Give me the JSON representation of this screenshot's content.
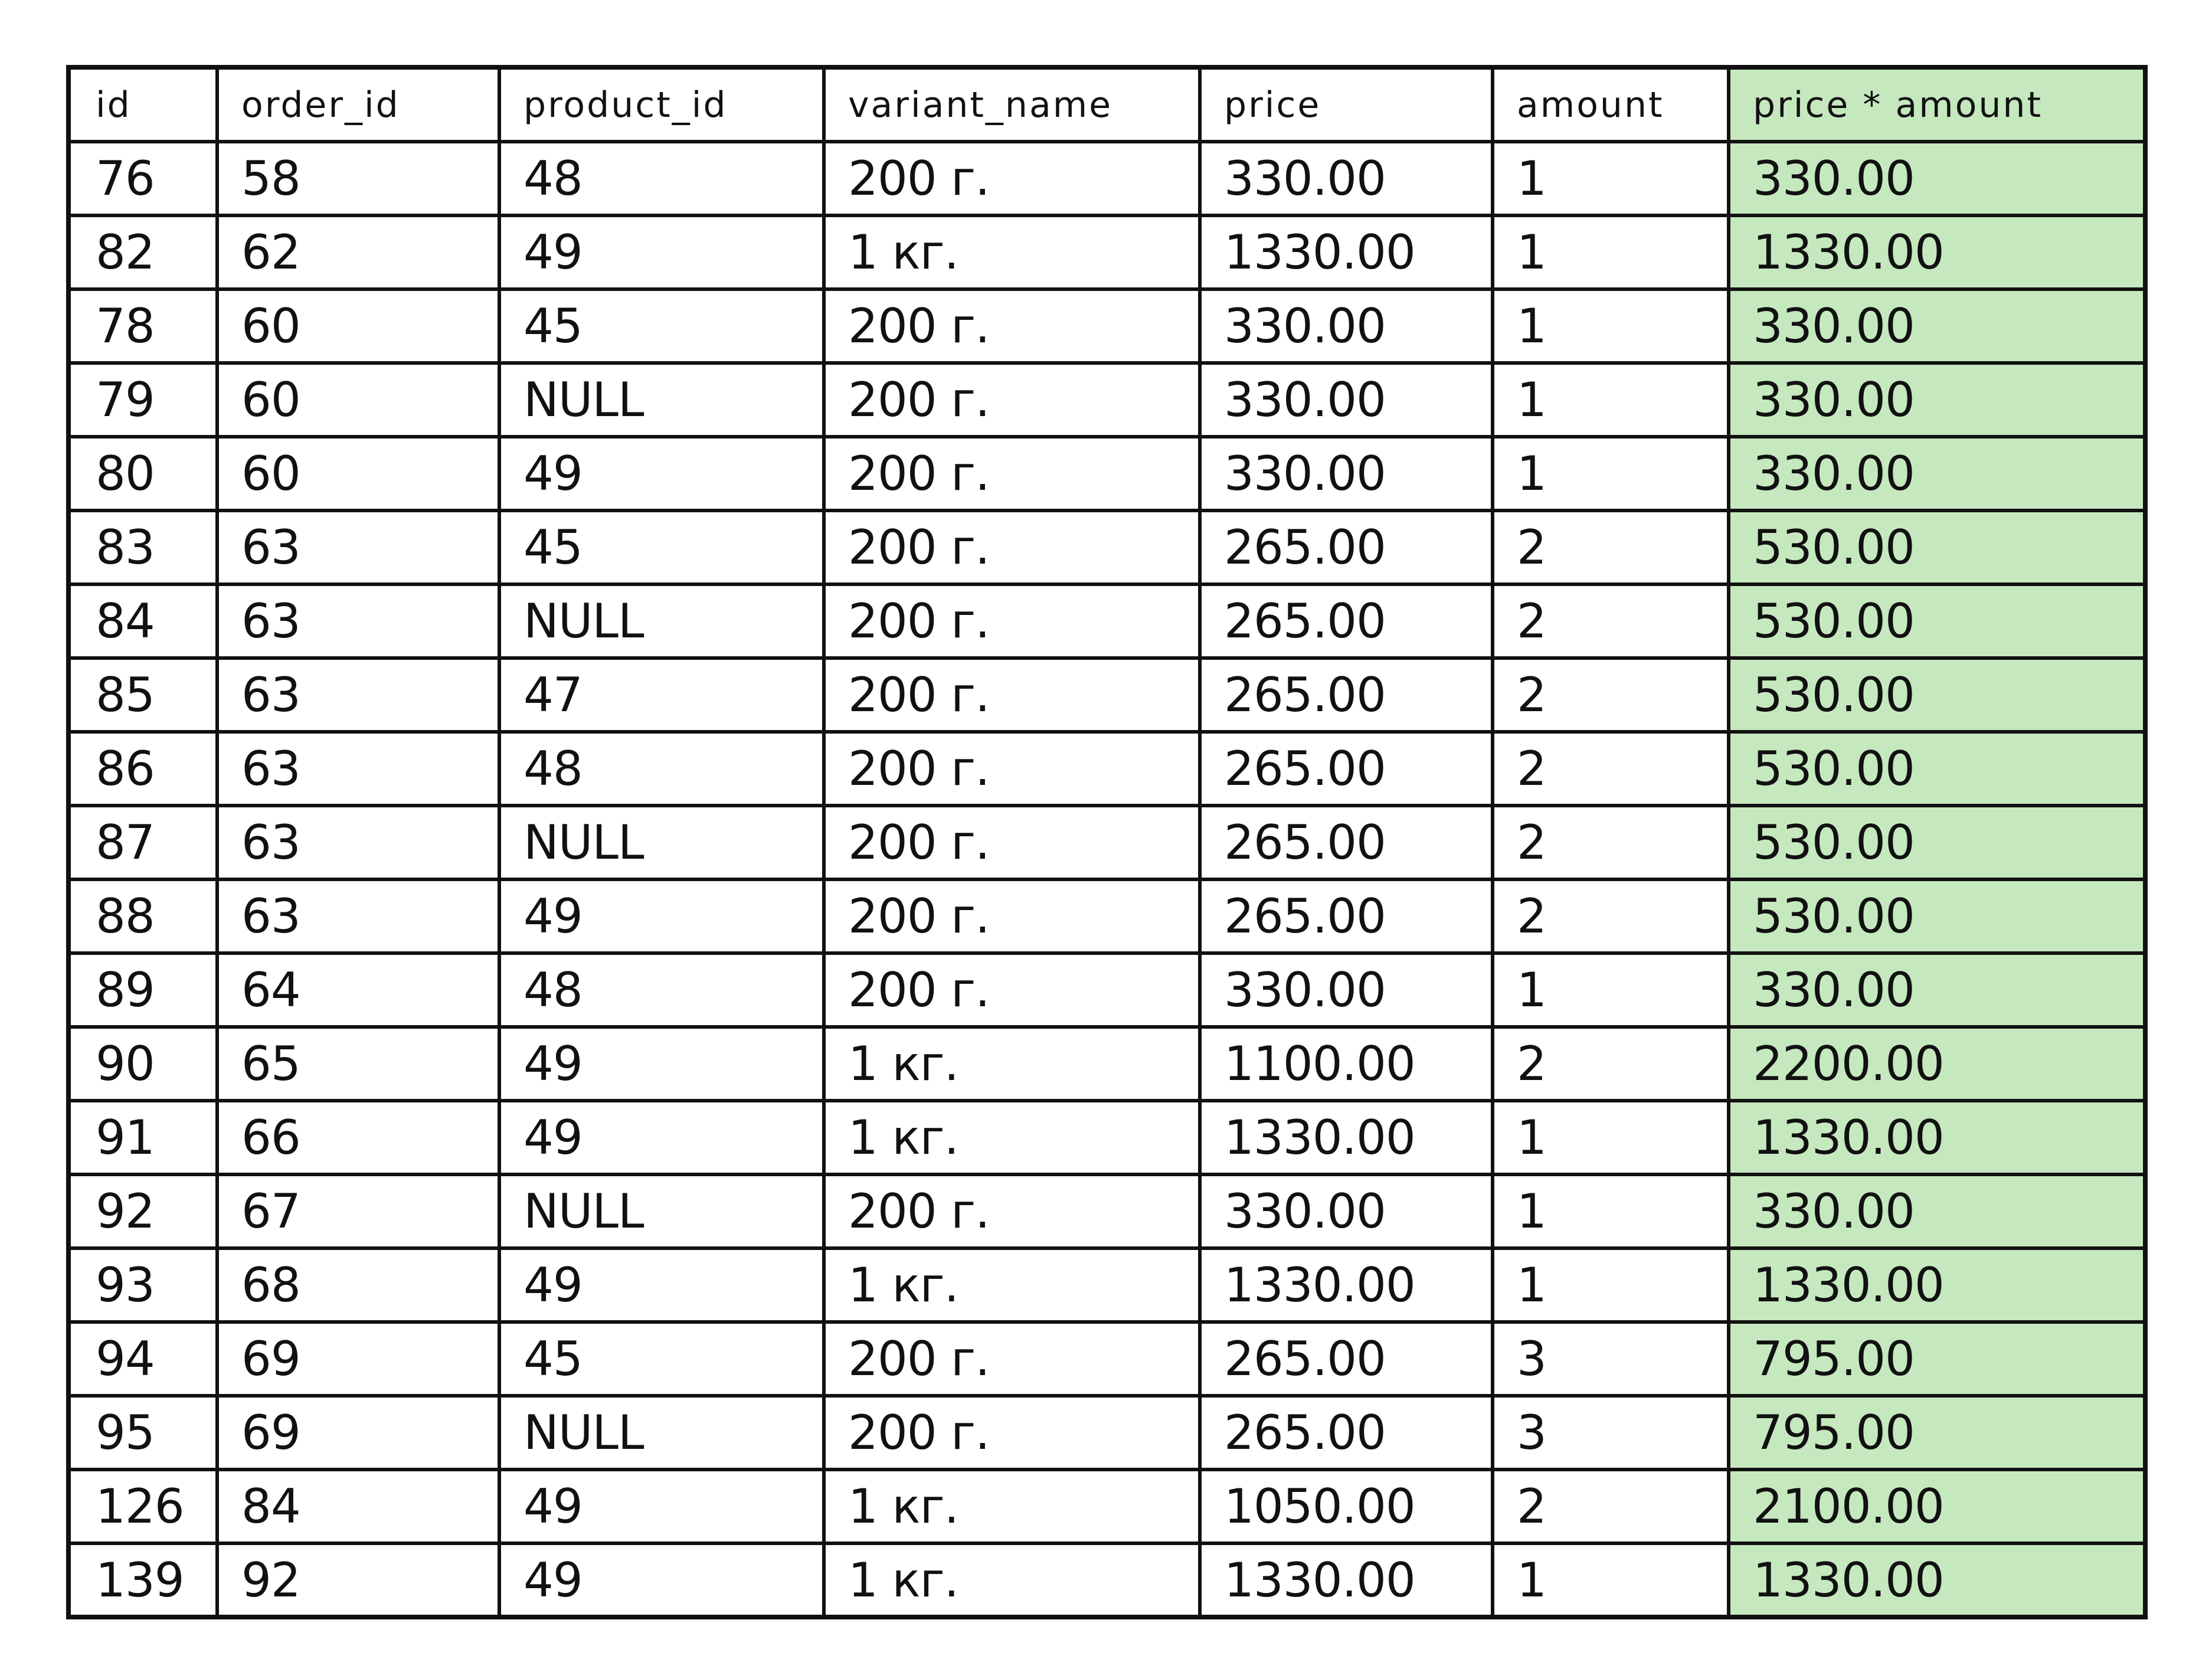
{
  "table": {
    "columns": [
      "id",
      "order_id",
      "product_id",
      "variant_name",
      "price",
      "amount",
      "price * amount"
    ],
    "highlight_column_index": 6,
    "highlight_color": "#c6e8bf",
    "border_color": "#111111",
    "rows": [
      [
        "76",
        "58",
        "48",
        "200 г.",
        "330.00",
        "1",
        "330.00"
      ],
      [
        "82",
        "62",
        "49",
        "1 кг.",
        "1330.00",
        "1",
        "1330.00"
      ],
      [
        "78",
        "60",
        "45",
        "200 г.",
        "330.00",
        "1",
        "330.00"
      ],
      [
        "79",
        "60",
        "NULL",
        "200 г.",
        "330.00",
        "1",
        "330.00"
      ],
      [
        "80",
        "60",
        "49",
        "200 г.",
        "330.00",
        "1",
        "330.00"
      ],
      [
        "83",
        "63",
        "45",
        "200 г.",
        "265.00",
        "2",
        "530.00"
      ],
      [
        "84",
        "63",
        "NULL",
        "200 г.",
        "265.00",
        "2",
        "530.00"
      ],
      [
        "85",
        "63",
        "47",
        "200 г.",
        "265.00",
        "2",
        "530.00"
      ],
      [
        "86",
        "63",
        "48",
        "200 г.",
        "265.00",
        "2",
        "530.00"
      ],
      [
        "87",
        "63",
        "NULL",
        "200 г.",
        "265.00",
        "2",
        "530.00"
      ],
      [
        "88",
        "63",
        "49",
        "200 г.",
        "265.00",
        "2",
        "530.00"
      ],
      [
        "89",
        "64",
        "48",
        "200 г.",
        "330.00",
        "1",
        "330.00"
      ],
      [
        "90",
        "65",
        "49",
        "1 кг.",
        "1100.00",
        "2",
        "2200.00"
      ],
      [
        "91",
        "66",
        "49",
        "1 кг.",
        "1330.00",
        "1",
        "1330.00"
      ],
      [
        "92",
        "67",
        "NULL",
        "200 г.",
        "330.00",
        "1",
        "330.00"
      ],
      [
        "93",
        "68",
        "49",
        "1 кг.",
        "1330.00",
        "1",
        "1330.00"
      ],
      [
        "94",
        "69",
        "45",
        "200 г.",
        "265.00",
        "3",
        "795.00"
      ],
      [
        "95",
        "69",
        "NULL",
        "200 г.",
        "265.00",
        "3",
        "795.00"
      ],
      [
        "126",
        "84",
        "49",
        "1 кг.",
        "1050.00",
        "2",
        "2100.00"
      ],
      [
        "139",
        "92",
        "49",
        "1 кг.",
        "1330.00",
        "1",
        "1330.00"
      ]
    ]
  }
}
